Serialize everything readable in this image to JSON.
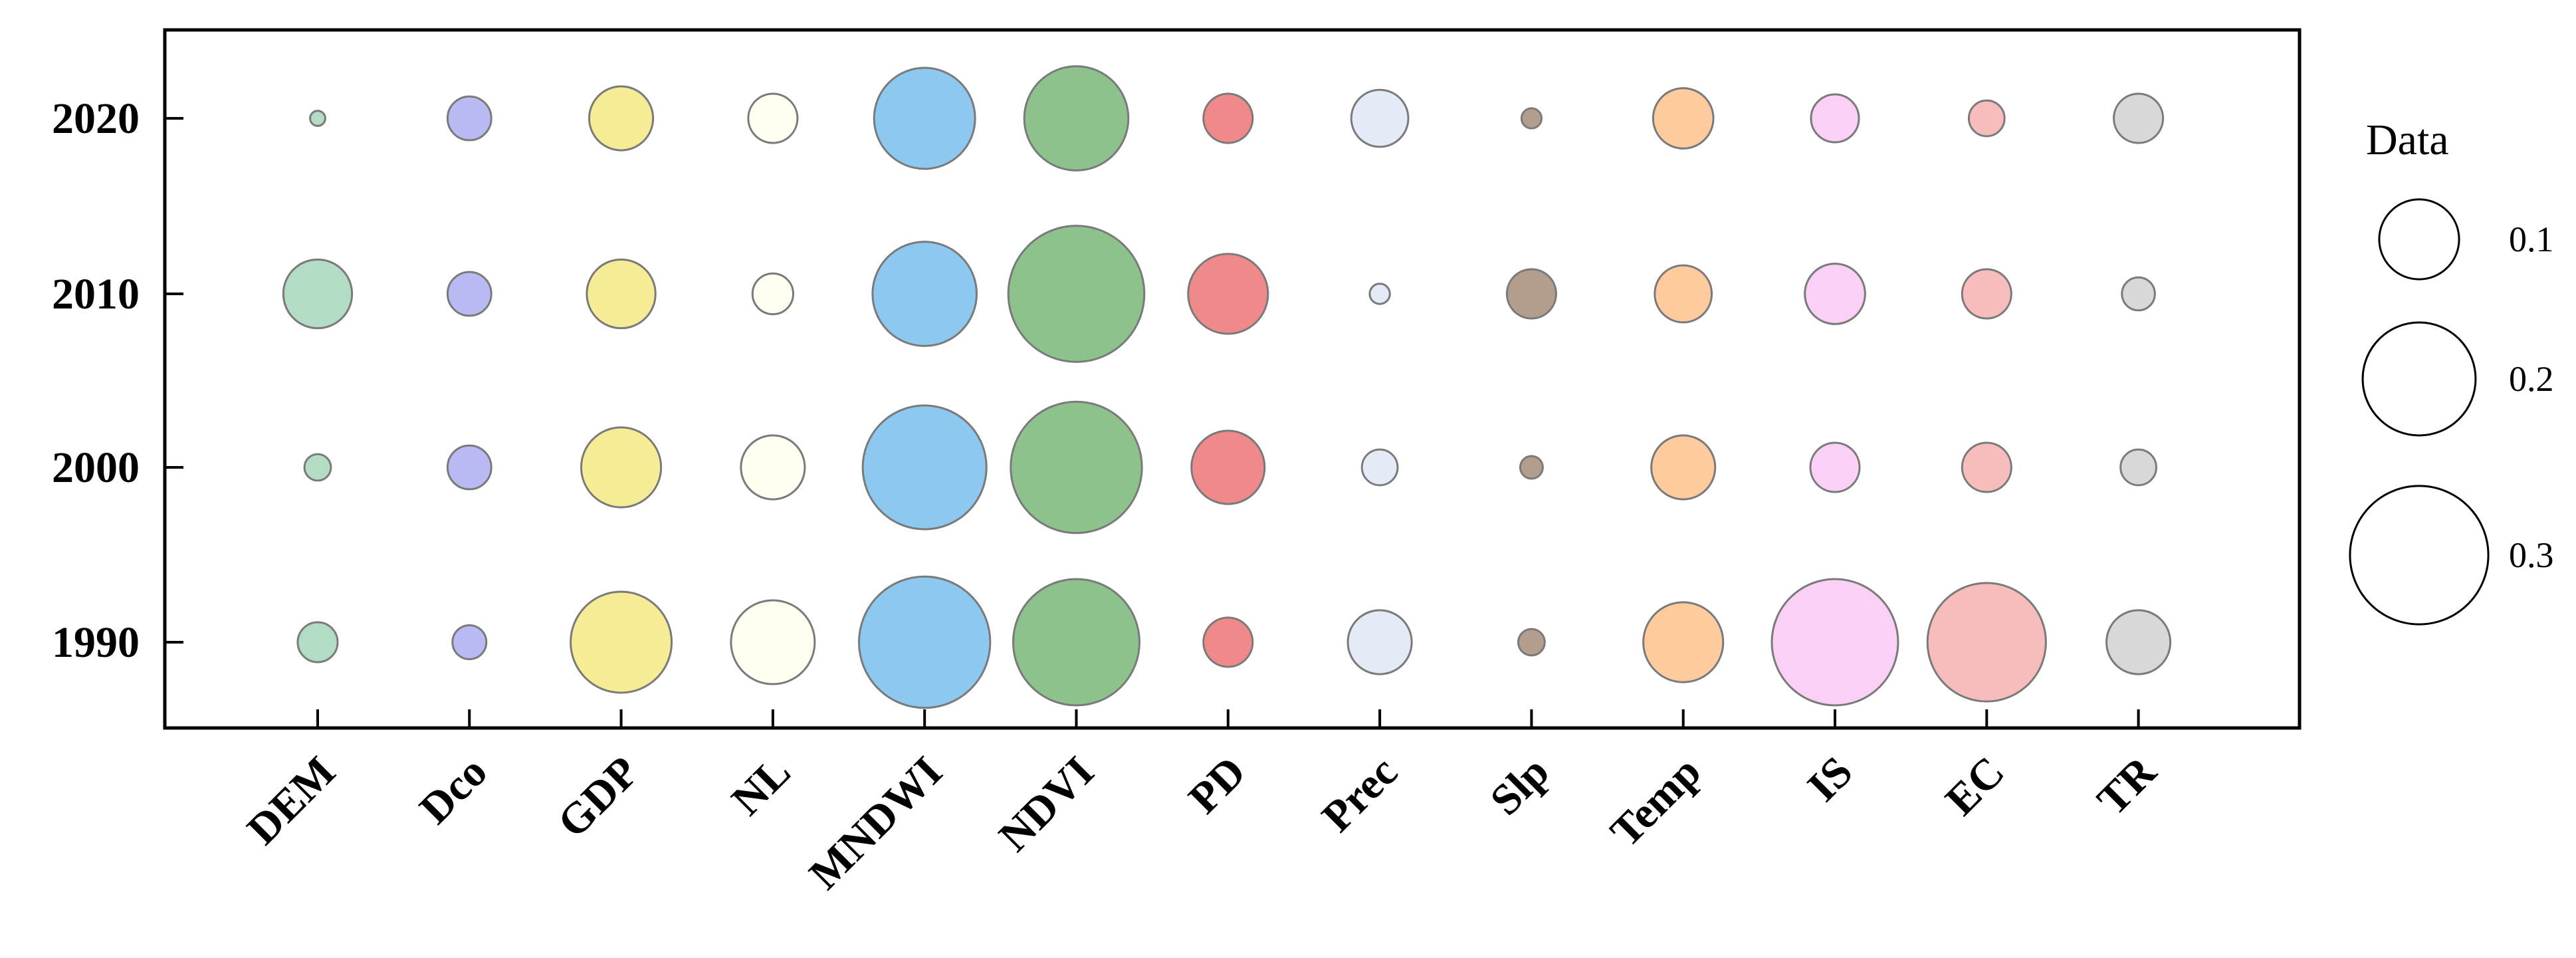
{
  "chart_data": {
    "type": "bubble",
    "title": "",
    "xlabel": "",
    "ylabel": "",
    "categories": [
      "DEM",
      "Dco",
      "GDP",
      "NL",
      "MNDWI",
      "NDVI",
      "PD",
      "Prec",
      "Slp",
      "Temp",
      "IS",
      "EC",
      "TR"
    ],
    "years": [
      "1990",
      "2000",
      "2010",
      "2020"
    ],
    "colors": [
      "#b3dcc4",
      "#b9b9f3",
      "#f6ec96",
      "#fffef1",
      "#8cc8f0",
      "#8ec28c",
      "#f08a8a",
      "#e4eaf6",
      "#b39d8d",
      "#fecb9f",
      "#fbd0f7",
      "#f7bcbc",
      "#d8d8d8"
    ],
    "values": {
      "1990": [
        0.025,
        0.018,
        0.16,
        0.11,
        0.27,
        0.25,
        0.038,
        0.064,
        0.011,
        0.1,
        0.25,
        0.22,
        0.064
      ],
      "2000": [
        0.011,
        0.03,
        0.1,
        0.064,
        0.24,
        0.27,
        0.084,
        0.02,
        0.008,
        0.064,
        0.038,
        0.038,
        0.02
      ],
      "2010": [
        0.074,
        0.03,
        0.074,
        0.026,
        0.17,
        0.29,
        0.1,
        0.0064,
        0.038,
        0.051,
        0.057,
        0.038,
        0.017
      ],
      "2020": [
        0.0036,
        0.03,
        0.064,
        0.038,
        0.16,
        0.17,
        0.038,
        0.051,
        0.0063,
        0.057,
        0.036,
        0.02,
        0.038
      ]
    },
    "legend": {
      "title": "Data",
      "entries": [
        {
          "label": "0.1",
          "value": 0.1
        },
        {
          "label": "0.2",
          "value": 0.2
        },
        {
          "label": "0.3",
          "value": 0.3
        }
      ],
      "position": "right"
    }
  }
}
